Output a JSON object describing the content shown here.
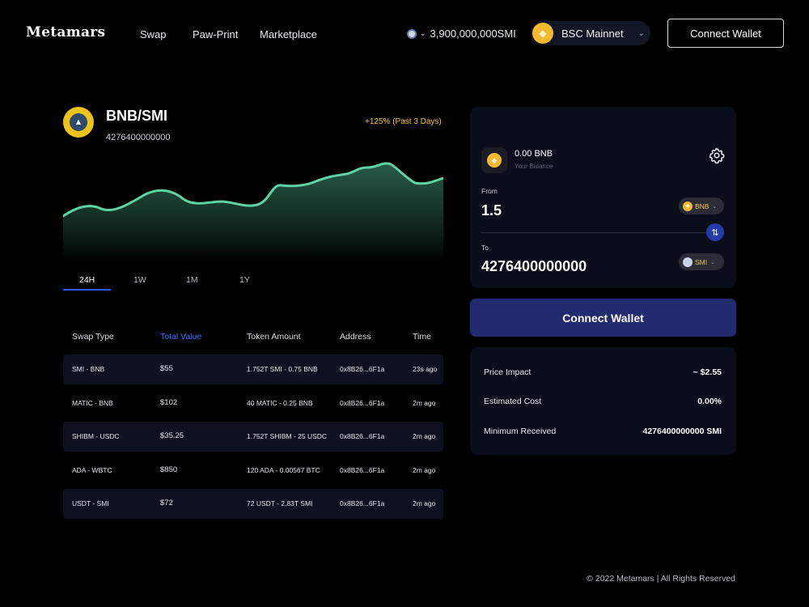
{
  "header": {
    "logo": "Metamars",
    "nav": [
      "Swap",
      "Paw-Print",
      "Marketplace"
    ],
    "supply": "3,900,000,000SMI",
    "network": "BSC Mainnet",
    "connect": "Connect Wallet"
  },
  "pair": {
    "name": "BNB/SMI",
    "value": "4276400000000",
    "change": "+125% (Past 3 Days)"
  },
  "timeframes": [
    "24H",
    "1W",
    "1M",
    "1Y"
  ],
  "table": {
    "headers": [
      "Swap Type",
      "Total Value",
      "Token Amount",
      "Address",
      "Time"
    ],
    "rows": [
      [
        "SMI - BNB",
        "$55",
        "1.752T SMI - 0.75 BNB",
        "0x8B26...6F1a",
        "23s ago"
      ],
      [
        "MATIC - BNB",
        "$102",
        "40 MATIC - 0.25 BNB",
        "0x8B26...6F1a",
        "2m ago"
      ],
      [
        "SHIBM - USDC",
        "$35.25",
        "1.752T SHIBM - 25 USDC",
        "0x8B26...6F1a",
        "2m ago"
      ],
      [
        "ADA - WBTC",
        "$850",
        "120 ADA - 0.00567 BTC",
        "0x8B26...6F1a",
        "2m ago"
      ],
      [
        "USDT - SMI",
        "$72",
        "72 USDT - 2.83T SMI",
        "0x8B26...6F1a",
        "2m ago"
      ]
    ]
  },
  "swap": {
    "balance": "0.00 BNB",
    "balance_label": "Your Balance",
    "from_label": "From",
    "from_value": "1.5",
    "from_token": "BNB",
    "to_label": "To",
    "to_value": "4276400000000",
    "to_token": "SMI",
    "connect": "Connect Wallet"
  },
  "info": {
    "price_impact_label": "Price Impact",
    "price_impact": "~ $2.55",
    "estimated_cost_label": "Estimated Cost",
    "estimated_cost": "0.00%",
    "minimum_received_label": "Minimum Received",
    "minimum_received": "4276400000000 SMI"
  },
  "footer": "© 2022 Metamars | All Rights Reserved",
  "colors": {
    "accent_blue": "#3d6fff",
    "chart_line": "#5fd3a4",
    "positive": "#f4c542",
    "bnb_gold": "#f3ba2f",
    "button_navy": "#232b70"
  },
  "icons": {
    "supply": "dog-coin-icon",
    "network": "bnb-coin-icon",
    "settings": "gear-icon",
    "switch": "swap-arrows-icon"
  }
}
